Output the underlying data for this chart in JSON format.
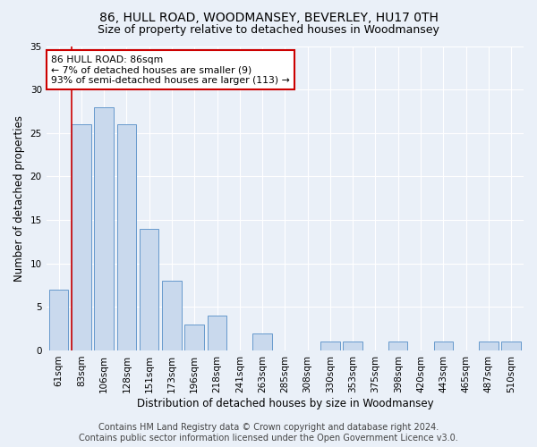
{
  "title": "86, HULL ROAD, WOODMANSEY, BEVERLEY, HU17 0TH",
  "subtitle": "Size of property relative to detached houses in Woodmansey",
  "xlabel": "Distribution of detached houses by size in Woodmansey",
  "ylabel": "Number of detached properties",
  "bar_labels": [
    "61sqm",
    "83sqm",
    "106sqm",
    "128sqm",
    "151sqm",
    "173sqm",
    "196sqm",
    "218sqm",
    "241sqm",
    "263sqm",
    "285sqm",
    "308sqm",
    "330sqm",
    "353sqm",
    "375sqm",
    "398sqm",
    "420sqm",
    "443sqm",
    "465sqm",
    "487sqm",
    "510sqm"
  ],
  "bar_values": [
    7,
    26,
    28,
    26,
    14,
    8,
    3,
    4,
    0,
    2,
    0,
    0,
    1,
    1,
    0,
    1,
    0,
    1,
    0,
    1,
    1
  ],
  "bar_color": "#c9d9ed",
  "bar_edge_color": "#6699cc",
  "ylim": [
    0,
    35
  ],
  "yticks": [
    0,
    5,
    10,
    15,
    20,
    25,
    30,
    35
  ],
  "annotation_text": "86 HULL ROAD: 86sqm\n← 7% of detached houses are smaller (9)\n93% of semi-detached houses are larger (113) →",
  "annotation_box_color": "#ffffff",
  "annotation_box_edge_color": "#cc0000",
  "redline_bar_index": 1,
  "footer_line1": "Contains HM Land Registry data © Crown copyright and database right 2024.",
  "footer_line2": "Contains public sector information licensed under the Open Government Licence v3.0.",
  "bg_color": "#eaf0f8",
  "plot_bg_color": "#eaf0f8",
  "grid_color": "#ffffff",
  "title_fontsize": 10,
  "subtitle_fontsize": 9,
  "axis_label_fontsize": 8.5,
  "tick_fontsize": 7.5,
  "footer_fontsize": 7
}
